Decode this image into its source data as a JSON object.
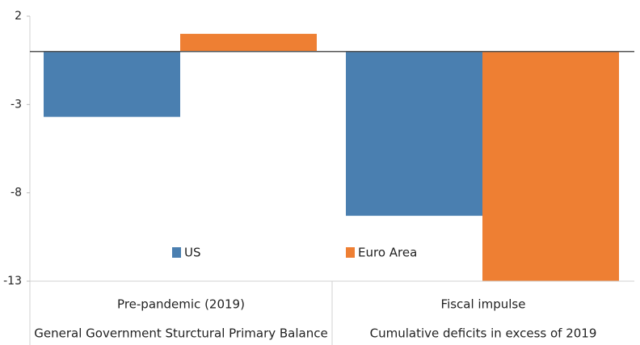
{
  "chart_data": {
    "type": "bar",
    "categories": [
      "Pre-pandemic (2019)",
      "Fiscal impulse"
    ],
    "category_descriptions": [
      "General Government Sturctural Primary Balance",
      "Cumulative deficits in excess of 2019"
    ],
    "series": [
      {
        "name": "US",
        "color": "#4a7fb0",
        "values": [
          -3.7,
          -9.3
        ]
      },
      {
        "name": "Euro Area",
        "color": "#ee7f33",
        "values": [
          1.0,
          -13
        ]
      }
    ],
    "ylim": [
      -13,
      2
    ],
    "yticks": [
      2,
      -3,
      -8,
      -13
    ]
  }
}
